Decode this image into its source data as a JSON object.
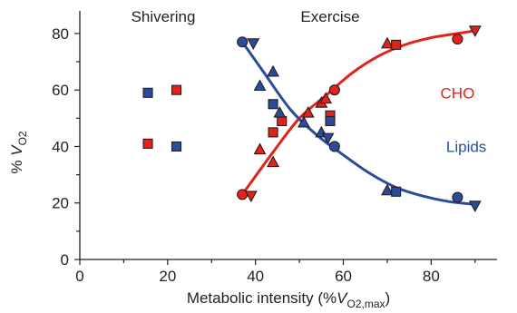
{
  "chart_data": {
    "type": "scatter",
    "xlabel_prefix": "Metabolic intensity (%",
    "xlabel_v": "V",
    "xlabel_sub": "O2,max",
    "xlabel_suffix": ")",
    "ylabel_prefix": "% ",
    "ylabel_v": "V",
    "ylabel_sub": "O2",
    "xlim": [
      0,
      95
    ],
    "ylim": [
      0,
      88
    ],
    "xticks": [
      0,
      20,
      40,
      60,
      80
    ],
    "yticks": [
      0,
      20,
      40,
      60,
      80
    ],
    "annotations": [
      {
        "id": "shivering",
        "text": "Shivering",
        "x": 19,
        "y": 86
      },
      {
        "id": "exercise",
        "text": "Exercise",
        "x": 57,
        "y": 86
      }
    ],
    "series": [
      {
        "name": "CHO",
        "color": "#e2231a",
        "label_pos": [
          86,
          59
        ],
        "curve": {
          "x": [
            37,
            44,
            50,
            56,
            62,
            68,
            74,
            80,
            86,
            90
          ],
          "y": [
            23,
            38,
            50,
            58,
            66,
            72,
            76,
            78.5,
            80,
            81
          ]
        },
        "points": [
          {
            "x": 15.5,
            "y": 41,
            "m": "square"
          },
          {
            "x": 22,
            "y": 60,
            "m": "square"
          },
          {
            "x": 37,
            "y": 23,
            "m": "circle"
          },
          {
            "x": 39,
            "y": 22.5,
            "m": "tri-down"
          },
          {
            "x": 41,
            "y": 39,
            "m": "tri-up"
          },
          {
            "x": 44,
            "y": 34.5,
            "m": "tri-up"
          },
          {
            "x": 44,
            "y": 45,
            "m": "square"
          },
          {
            "x": 46,
            "y": 49,
            "m": "square"
          },
          {
            "x": 52,
            "y": 52,
            "m": "tri-up"
          },
          {
            "x": 55,
            "y": 55.5,
            "m": "tri-up"
          },
          {
            "x": 57,
            "y": 51,
            "m": "square"
          },
          {
            "x": 58,
            "y": 60,
            "m": "circle"
          },
          {
            "x": 56,
            "y": 57,
            "m": "tri-up"
          },
          {
            "x": 70,
            "y": 76.5,
            "m": "tri-up"
          },
          {
            "x": 72,
            "y": 76,
            "m": "square"
          },
          {
            "x": 86,
            "y": 78,
            "m": "circle"
          },
          {
            "x": 90,
            "y": 81,
            "m": "tri-down"
          }
        ]
      },
      {
        "name": "Lipids",
        "color": "#2b4c9b",
        "label_pos": [
          88,
          40
        ],
        "curve": {
          "x": [
            37,
            42,
            48,
            54,
            60,
            66,
            72,
            78,
            84,
            90
          ],
          "y": [
            77,
            66,
            53,
            44,
            37,
            30.5,
            25.5,
            22.5,
            20.5,
            19.5
          ]
        },
        "points": [
          {
            "x": 15.5,
            "y": 59,
            "m": "square"
          },
          {
            "x": 22,
            "y": 40,
            "m": "square"
          },
          {
            "x": 37,
            "y": 77,
            "m": "circle"
          },
          {
            "x": 39.5,
            "y": 76.5,
            "m": "tri-down"
          },
          {
            "x": 44,
            "y": 66.5,
            "m": "tri-up"
          },
          {
            "x": 41,
            "y": 61.5,
            "m": "tri-up"
          },
          {
            "x": 44,
            "y": 55,
            "m": "square"
          },
          {
            "x": 45.5,
            "y": 52,
            "m": "tri-up"
          },
          {
            "x": 51,
            "y": 48.5,
            "m": "tri-up"
          },
          {
            "x": 55,
            "y": 45,
            "m": "tri-up"
          },
          {
            "x": 56.5,
            "y": 43,
            "m": "tri-down"
          },
          {
            "x": 57,
            "y": 49,
            "m": "square"
          },
          {
            "x": 58,
            "y": 40,
            "m": "circle"
          },
          {
            "x": 70,
            "y": 24.5,
            "m": "tri-up"
          },
          {
            "x": 72,
            "y": 24,
            "m": "square"
          },
          {
            "x": 86,
            "y": 22,
            "m": "circle"
          },
          {
            "x": 90,
            "y": 19,
            "m": "tri-down"
          }
        ]
      }
    ]
  }
}
